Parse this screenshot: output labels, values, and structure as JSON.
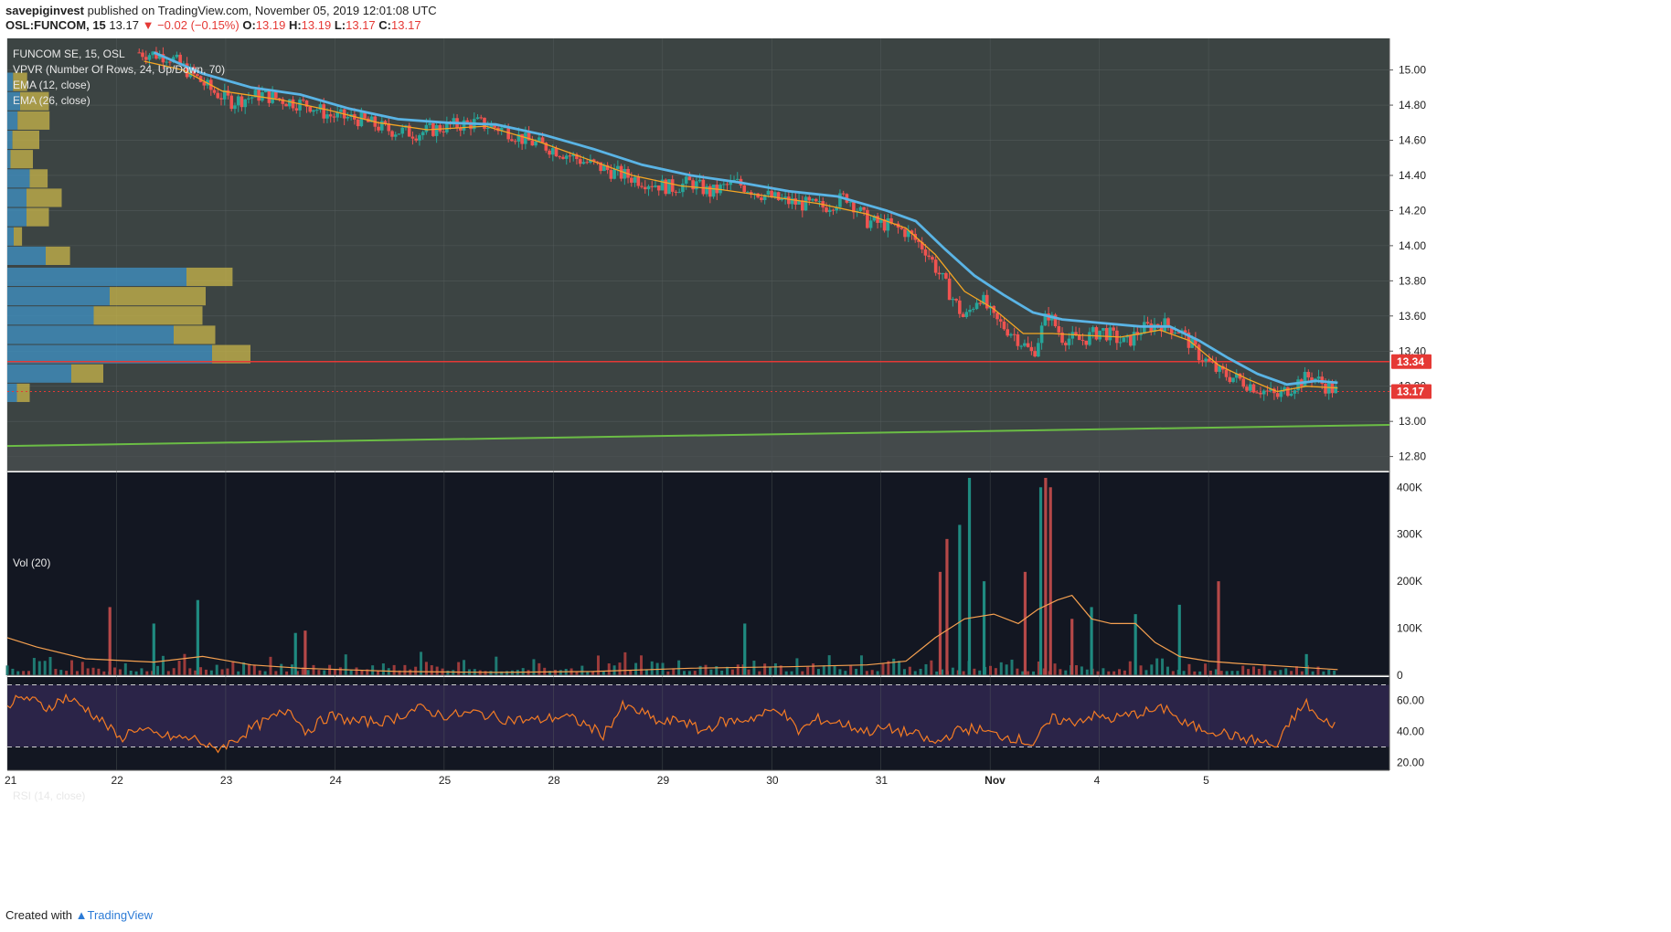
{
  "header": {
    "publisher": "savepiginvest",
    "published_text": " published on TradingView.com, November 05, 2019 12:01:08 UTC",
    "symbol": "OSL:FUNCOM, 15",
    "last": "13.17",
    "change": "▼ −0.02 (−0.15%)",
    "o_label": "O:",
    "o": "13.19",
    "h_label": "H:",
    "h": "13.19",
    "l_label": "L:",
    "l": "13.17",
    "c_label": "C:",
    "c": "13.17"
  },
  "legend": {
    "title": "FUNCOM SE, 15, OSL",
    "vpvr": "VPVR (Number Of Rows, 24, Up/Down, 70)",
    "ema12": "EMA (12, close)",
    "ema26": "EMA (26, close)",
    "vol": "Vol (20)",
    "rsi": "RSI (14, close)"
  },
  "footer": {
    "created": "Created with",
    "brand": "TradingView"
  },
  "colors": {
    "up": "#26a69a",
    "down": "#ef5350",
    "ema12": "#f5a623",
    "ema26": "#5ab4e5",
    "trend": "#6bbd45",
    "hline": "#e53935",
    "rsi": "#f57c24",
    "panel": "#131722"
  },
  "chart_data": [
    {
      "type": "candlestick",
      "title": "FUNCOM SE, 15, OSL",
      "x_ticks": [
        "21",
        "22",
        "23",
        "24",
        "25",
        "28",
        "29",
        "30",
        "31",
        "Nov",
        "4",
        "5"
      ],
      "y_ticks": [
        "15.00",
        "14.80",
        "14.60",
        "14.40",
        "14.20",
        "14.00",
        "13.80",
        "13.60",
        "13.40",
        "13.20",
        "13.00",
        "12.80"
      ],
      "ylim": [
        12.72,
        15.18
      ],
      "price_labels": {
        "level": "13.34",
        "last": "13.17"
      },
      "horizontal_level": 13.34,
      "last_price": 13.17,
      "trendline": {
        "start": 12.86,
        "end": 12.98
      },
      "close_path": [
        [
          22.35,
          15.1
        ],
        [
          22.65,
          15.08
        ],
        [
          22.95,
          14.95
        ],
        [
          23.1,
          14.88
        ],
        [
          23.3,
          14.82
        ],
        [
          23.6,
          14.86
        ],
        [
          23.9,
          14.82
        ],
        [
          24.1,
          14.8
        ],
        [
          24.3,
          14.74
        ],
        [
          24.6,
          14.72
        ],
        [
          24.9,
          14.66
        ],
        [
          25.2,
          14.64
        ],
        [
          25.5,
          14.68
        ],
        [
          25.8,
          14.7
        ],
        [
          26.1,
          14.66
        ],
        [
          26.3,
          14.6
        ],
        [
          26.6,
          14.55
        ],
        [
          26.9,
          14.48
        ],
        [
          27.2,
          14.42
        ],
        [
          27.5,
          14.37
        ],
        [
          27.8,
          14.33
        ],
        [
          28.0,
          14.36
        ],
        [
          28.2,
          14.3
        ],
        [
          28.45,
          14.36
        ],
        [
          28.7,
          14.3
        ],
        [
          28.9,
          14.26
        ],
        [
          29.1,
          14.24
        ],
        [
          29.35,
          14.22
        ],
        [
          29.6,
          14.28
        ],
        [
          29.8,
          14.14
        ],
        [
          30.0,
          14.12
        ],
        [
          30.2,
          14.08
        ],
        [
          30.4,
          13.98
        ],
        [
          30.6,
          13.78
        ],
        [
          30.8,
          13.58
        ],
        [
          30.95,
          13.72
        ],
        [
          31.1,
          13.58
        ],
        [
          31.3,
          13.5
        ],
        [
          31.5,
          13.38
        ],
        [
          31.65,
          13.62
        ],
        [
          31.8,
          13.48
        ],
        [
          32.0,
          13.46
        ],
        [
          32.2,
          13.52
        ],
        [
          32.45,
          13.44
        ],
        [
          32.6,
          13.52
        ],
        [
          32.8,
          13.56
        ],
        [
          33.0,
          13.52
        ],
        [
          33.2,
          13.38
        ],
        [
          33.4,
          13.28
        ],
        [
          33.6,
          13.24
        ],
        [
          33.8,
          13.19
        ],
        [
          34.0,
          13.14
        ],
        [
          34.2,
          13.22
        ],
        [
          34.35,
          13.26
        ],
        [
          34.5,
          13.2
        ],
        [
          34.62,
          13.17
        ]
      ],
      "ema12_path": [
        [
          22.4,
          15.05
        ],
        [
          22.8,
          15.0
        ],
        [
          23.2,
          14.88
        ],
        [
          23.8,
          14.83
        ],
        [
          24.3,
          14.77
        ],
        [
          24.8,
          14.7
        ],
        [
          25.3,
          14.66
        ],
        [
          25.9,
          14.68
        ],
        [
          26.4,
          14.6
        ],
        [
          26.9,
          14.5
        ],
        [
          27.4,
          14.4
        ],
        [
          27.9,
          14.34
        ],
        [
          28.3,
          14.32
        ],
        [
          28.8,
          14.28
        ],
        [
          29.3,
          14.24
        ],
        [
          29.8,
          14.18
        ],
        [
          30.2,
          14.1
        ],
        [
          30.5,
          13.95
        ],
        [
          30.8,
          13.74
        ],
        [
          31.1,
          13.64
        ],
        [
          31.4,
          13.5
        ],
        [
          31.7,
          13.5
        ],
        [
          32.0,
          13.49
        ],
        [
          32.4,
          13.48
        ],
        [
          32.8,
          13.52
        ],
        [
          33.1,
          13.46
        ],
        [
          33.4,
          13.32
        ],
        [
          33.7,
          13.24
        ],
        [
          34.0,
          13.17
        ],
        [
          34.3,
          13.2
        ],
        [
          34.62,
          13.19
        ]
      ],
      "ema26_path": [
        [
          22.5,
          15.1
        ],
        [
          23.0,
          14.98
        ],
        [
          23.5,
          14.9
        ],
        [
          24.0,
          14.86
        ],
        [
          24.5,
          14.78
        ],
        [
          25.0,
          14.72
        ],
        [
          25.5,
          14.7
        ],
        [
          26.0,
          14.69
        ],
        [
          26.5,
          14.63
        ],
        [
          27.0,
          14.55
        ],
        [
          27.5,
          14.46
        ],
        [
          28.0,
          14.4
        ],
        [
          28.5,
          14.36
        ],
        [
          29.0,
          14.31
        ],
        [
          29.5,
          14.28
        ],
        [
          30.0,
          14.2
        ],
        [
          30.3,
          14.14
        ],
        [
          30.6,
          13.98
        ],
        [
          30.9,
          13.83
        ],
        [
          31.2,
          13.72
        ],
        [
          31.5,
          13.62
        ],
        [
          31.8,
          13.58
        ],
        [
          32.2,
          13.56
        ],
        [
          32.6,
          13.54
        ],
        [
          32.9,
          13.54
        ],
        [
          33.2,
          13.46
        ],
        [
          33.5,
          13.36
        ],
        [
          33.8,
          13.27
        ],
        [
          34.1,
          13.21
        ],
        [
          34.4,
          13.23
        ],
        [
          34.62,
          13.22
        ]
      ],
      "vpvr_rows": [
        {
          "price": 14.93,
          "up": 0.9,
          "down": 2.2
        },
        {
          "price": 14.82,
          "up": 2.0,
          "down": 4.5
        },
        {
          "price": 14.71,
          "up": 1.6,
          "down": 5.0
        },
        {
          "price": 14.6,
          "up": 0.8,
          "down": 4.2
        },
        {
          "price": 14.49,
          "up": 0.5,
          "down": 3.5
        },
        {
          "price": 14.38,
          "up": 3.5,
          "down": 2.8
        },
        {
          "price": 14.27,
          "up": 3.0,
          "down": 5.5
        },
        {
          "price": 14.16,
          "up": 3.0,
          "down": 3.5
        },
        {
          "price": 14.05,
          "up": 1.0,
          "down": 1.3
        },
        {
          "price": 13.94,
          "up": 6.0,
          "down": 3.8
        },
        {
          "price": 13.82,
          "up": 28.0,
          "down": 7.2
        },
        {
          "price": 13.71,
          "up": 16.0,
          "down": 15.0
        },
        {
          "price": 13.6,
          "up": 13.5,
          "down": 17.0
        },
        {
          "price": 13.49,
          "up": 26.0,
          "down": 6.5
        },
        {
          "price": 13.38,
          "up": 32.0,
          "down": 6.0
        },
        {
          "price": 13.27,
          "up": 10.0,
          "down": 5.0
        },
        {
          "price": 13.16,
          "up": 1.5,
          "down": 2.0
        }
      ]
    },
    {
      "type": "bar",
      "title": "Vol (20)",
      "y_ticks": [
        "400K",
        "300K",
        "200K",
        "100K",
        "0"
      ],
      "ylim": [
        0,
        420000
      ],
      "spikes": [
        {
          "x": 22.05,
          "v": 145000,
          "dir": "down"
        },
        {
          "x": 22.5,
          "v": 110000,
          "dir": "up"
        },
        {
          "x": 22.95,
          "v": 160000,
          "dir": "up"
        },
        {
          "x": 23.95,
          "v": 90000,
          "dir": "up"
        },
        {
          "x": 24.05,
          "v": 95000,
          "dir": "down"
        },
        {
          "x": 28.55,
          "v": 110000,
          "dir": "up"
        },
        {
          "x": 30.55,
          "v": 220000,
          "dir": "down"
        },
        {
          "x": 30.62,
          "v": 290000,
          "dir": "down"
        },
        {
          "x": 30.75,
          "v": 320000,
          "dir": "up"
        },
        {
          "x": 30.85,
          "v": 420000,
          "dir": "up"
        },
        {
          "x": 31.0,
          "v": 200000,
          "dir": "up"
        },
        {
          "x": 31.42,
          "v": 220000,
          "dir": "down"
        },
        {
          "x": 31.58,
          "v": 400000,
          "dir": "up"
        },
        {
          "x": 31.63,
          "v": 420000,
          "dir": "down"
        },
        {
          "x": 31.68,
          "v": 400000,
          "dir": "down"
        },
        {
          "x": 31.9,
          "v": 120000,
          "dir": "down"
        },
        {
          "x": 32.1,
          "v": 145000,
          "dir": "up"
        },
        {
          "x": 32.55,
          "v": 130000,
          "dir": "up"
        },
        {
          "x": 33.0,
          "v": 150000,
          "dir": "up"
        },
        {
          "x": 33.4,
          "v": 200000,
          "dir": "down"
        },
        {
          "x": 34.3,
          "v": 45000,
          "dir": "up"
        }
      ],
      "ma_path": [
        [
          21.0,
          80000
        ],
        [
          21.3,
          60000
        ],
        [
          21.8,
          35000
        ],
        [
          22.5,
          28000
        ],
        [
          23.0,
          40000
        ],
        [
          23.5,
          22000
        ],
        [
          24.0,
          15000
        ],
        [
          25.0,
          8000
        ],
        [
          26.0,
          6000
        ],
        [
          27.0,
          8000
        ],
        [
          28.0,
          15000
        ],
        [
          29.0,
          18000
        ],
        [
          29.8,
          22000
        ],
        [
          30.2,
          30000
        ],
        [
          30.5,
          80000
        ],
        [
          30.8,
          120000
        ],
        [
          31.1,
          130000
        ],
        [
          31.35,
          110000
        ],
        [
          31.55,
          140000
        ],
        [
          31.75,
          160000
        ],
        [
          31.9,
          170000
        ],
        [
          32.1,
          120000
        ],
        [
          32.3,
          110000
        ],
        [
          32.55,
          110000
        ],
        [
          32.75,
          70000
        ],
        [
          33.0,
          40000
        ],
        [
          33.3,
          30000
        ],
        [
          33.6,
          25000
        ],
        [
          34.0,
          20000
        ],
        [
          34.62,
          12000
        ]
      ]
    },
    {
      "type": "line",
      "title": "RSI (14, close)",
      "y_ticks": [
        "60.00",
        "40.00",
        "20.00"
      ],
      "ylim": [
        15,
        75
      ],
      "bands": [
        30,
        70
      ],
      "path": [
        [
          21.0,
          58
        ],
        [
          21.2,
          62
        ],
        [
          21.4,
          55
        ],
        [
          21.6,
          62
        ],
        [
          21.8,
          55
        ],
        [
          22.0,
          45
        ],
        [
          22.15,
          35
        ],
        [
          22.3,
          42
        ],
        [
          22.5,
          38
        ],
        [
          22.7,
          36
        ],
        [
          22.95,
          35
        ],
        [
          23.1,
          28
        ],
        [
          23.3,
          33
        ],
        [
          23.5,
          42
        ],
        [
          23.7,
          48
        ],
        [
          23.9,
          55
        ],
        [
          24.05,
          40
        ],
        [
          24.3,
          50
        ],
        [
          24.6,
          46
        ],
        [
          24.9,
          47
        ],
        [
          25.2,
          55
        ],
        [
          25.5,
          50
        ],
        [
          25.8,
          52
        ],
        [
          26.1,
          48
        ],
        [
          26.4,
          47
        ],
        [
          26.7,
          50
        ],
        [
          26.9,
          45
        ],
        [
          27.1,
          38
        ],
        [
          27.3,
          56
        ],
        [
          27.5,
          52
        ],
        [
          27.7,
          45
        ],
        [
          27.9,
          48
        ],
        [
          28.1,
          40
        ],
        [
          28.3,
          46
        ],
        [
          28.5,
          47
        ],
        [
          28.7,
          50
        ],
        [
          28.9,
          55
        ],
        [
          29.1,
          40
        ],
        [
          29.3,
          48
        ],
        [
          29.55,
          45
        ],
        [
          29.8,
          40
        ],
        [
          30.0,
          42
        ],
        [
          30.3,
          38
        ],
        [
          30.5,
          32
        ],
        [
          30.7,
          40
        ],
        [
          30.9,
          42
        ],
        [
          31.1,
          38
        ],
        [
          31.3,
          36
        ],
        [
          31.5,
          32
        ],
        [
          31.7,
          48
        ],
        [
          31.9,
          46
        ],
        [
          32.1,
          50
        ],
        [
          32.3,
          48
        ],
        [
          32.6,
          52
        ],
        [
          32.9,
          55
        ],
        [
          33.0,
          46
        ],
        [
          33.2,
          42
        ],
        [
          33.4,
          40
        ],
        [
          33.6,
          36
        ],
        [
          33.8,
          34
        ],
        [
          34.0,
          30
        ],
        [
          34.15,
          48
        ],
        [
          34.3,
          58
        ],
        [
          34.45,
          46
        ],
        [
          34.62,
          45
        ]
      ]
    }
  ]
}
